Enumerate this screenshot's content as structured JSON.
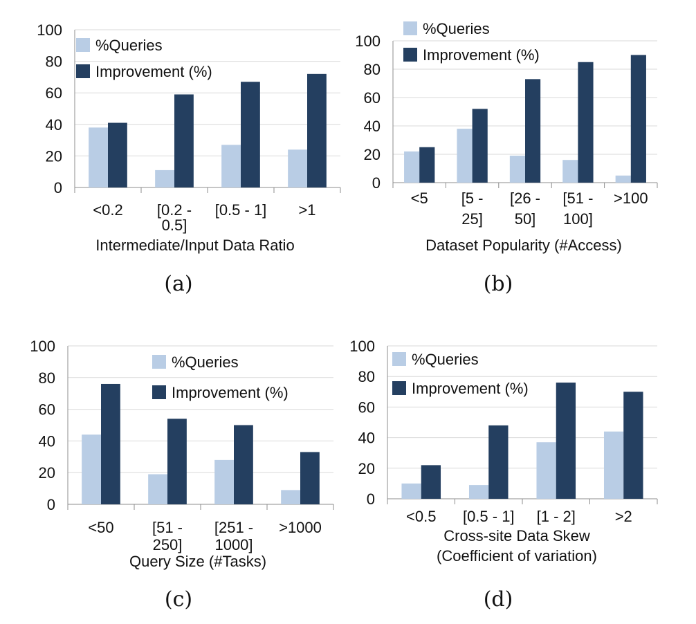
{
  "colors": {
    "queries": "#b9cde5",
    "improvement": "#243f60"
  },
  "chart_data": [
    {
      "type": "bar",
      "caption": "(a)",
      "xlabel": [
        "Intermediate/Input Data Ratio"
      ],
      "ylabel": "",
      "ylim": [
        0,
        100
      ],
      "yticks": [
        "0",
        "20",
        "40",
        "60",
        "80",
        "100"
      ],
      "grid": true,
      "legend": "top-left",
      "categories": [
        [
          "<0.2"
        ],
        [
          "[0.2 -",
          "0.5]"
        ],
        [
          "[0.5 - 1]"
        ],
        [
          ">1"
        ]
      ],
      "series": [
        {
          "name": "%Queries",
          "values": [
            38,
            11,
            27,
            24
          ]
        },
        {
          "name": "Improvement (%)",
          "values": [
            41,
            59,
            67,
            72
          ]
        }
      ]
    },
    {
      "type": "bar",
      "caption": "(b)",
      "xlabel": [
        "Dataset Popularity (#Access)"
      ],
      "ylabel": "",
      "ylim": [
        0,
        100
      ],
      "yticks": [
        "0",
        "20",
        "40",
        "60",
        "80",
        "100"
      ],
      "grid": true,
      "legend": "top-left",
      "categories": [
        [
          "<5"
        ],
        [
          "[5 -",
          "25]"
        ],
        [
          "[26 -",
          "50]"
        ],
        [
          "[51 -",
          "100]"
        ],
        [
          ">100"
        ]
      ],
      "series": [
        {
          "name": "%Queries",
          "values": [
            22,
            38,
            19,
            16,
            5
          ]
        },
        {
          "name": "Improvement (%)",
          "values": [
            25,
            52,
            73,
            85,
            90
          ]
        }
      ]
    },
    {
      "type": "bar",
      "caption": "(c)",
      "xlabel": [
        "Query Size (#Tasks)"
      ],
      "ylabel": "",
      "ylim": [
        0,
        100
      ],
      "yticks": [
        "0",
        "20",
        "40",
        "60",
        "80",
        "100"
      ],
      "grid": true,
      "legend": "top-right",
      "categories": [
        [
          "<50"
        ],
        [
          "[51 -",
          "250]"
        ],
        [
          "[251 -",
          "1000]"
        ],
        [
          ">1000"
        ]
      ],
      "series": [
        {
          "name": "%Queries",
          "values": [
            44,
            19,
            28,
            9
          ]
        },
        {
          "name": "Improvement (%)",
          "values": [
            76,
            54,
            50,
            33
          ]
        }
      ]
    },
    {
      "type": "bar",
      "caption": "(d)",
      "xlabel": [
        "Cross-site Data Skew",
        "(Coefficient of variation)"
      ],
      "ylabel": "",
      "ylim": [
        0,
        100
      ],
      "yticks": [
        "0",
        "20",
        "40",
        "60",
        "80",
        "100"
      ],
      "grid": true,
      "legend": "top-left",
      "categories": [
        [
          "<0.5"
        ],
        [
          "[0.5 - 1]"
        ],
        [
          "[1 - 2]"
        ],
        [
          ">2"
        ]
      ],
      "series": [
        {
          "name": "%Queries",
          "values": [
            10,
            9,
            37,
            44
          ]
        },
        {
          "name": "Improvement (%)",
          "values": [
            22,
            48,
            76,
            70
          ]
        }
      ]
    }
  ]
}
